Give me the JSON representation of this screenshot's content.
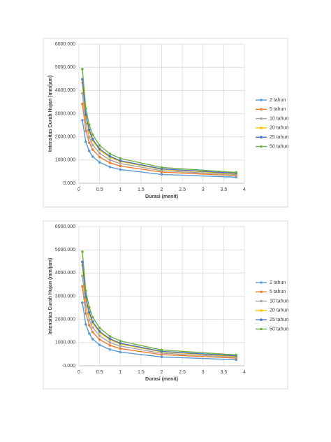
{
  "chart_data": [
    {
      "type": "line",
      "x_label": "Durasi (menit)",
      "y_label": "Intensitas Curah Hujan (mm/jam)",
      "x": [
        0.083,
        0.167,
        0.25,
        0.333,
        0.5,
        0.75,
        1,
        2,
        3.8
      ],
      "series": [
        {
          "name": "2 tahun",
          "color": "#5b9bd5",
          "values": [
            2720,
            1780,
            1390,
            1150,
            900,
            700,
            590,
            380,
            260
          ]
        },
        {
          "name": "5 tahun",
          "color": "#ed7d31",
          "values": [
            3420,
            2250,
            1750,
            1450,
            1130,
            880,
            740,
            480,
            330
          ]
        },
        {
          "name": "10 tahun",
          "color": "#a5a5a5",
          "values": [
            3880,
            2560,
            1990,
            1650,
            1290,
            1000,
            850,
            540,
            370
          ]
        },
        {
          "name": "20 tahun",
          "color": "#ffc000",
          "values": [
            4330,
            2850,
            2220,
            1840,
            1430,
            1120,
            940,
            600,
            410
          ]
        },
        {
          "name": "25 tahun",
          "color": "#4472c4",
          "values": [
            4480,
            2950,
            2300,
            1900,
            1480,
            1160,
            970,
            620,
            430
          ]
        },
        {
          "name": "50 tahun",
          "color": "#70ad47",
          "values": [
            4920,
            3230,
            2520,
            2090,
            1630,
            1270,
            1070,
            680,
            470
          ]
        }
      ],
      "xlim": [
        0,
        4
      ],
      "xticks": [
        0,
        0.5,
        1,
        1.5,
        2,
        2.5,
        3,
        3.5,
        4
      ],
      "ylim": [
        0,
        6000
      ],
      "yticks": [
        {
          "value": 0,
          "label": "0.000"
        },
        {
          "value": 1000,
          "label": "1000.000"
        },
        {
          "value": 2000,
          "label": "2000.000"
        },
        {
          "value": 3000,
          "label": "3000.000"
        },
        {
          "value": 4000,
          "label": "4000.000"
        },
        {
          "value": 5000,
          "label": "5000.000"
        },
        {
          "value": 6000,
          "label": "6000.000"
        }
      ],
      "grid": true,
      "legend": "right"
    },
    {
      "type": "line",
      "x_label": "Durasi (menit)",
      "y_label": "Intensitas Curah Hujan (mm/jam)",
      "x": [
        0.083,
        0.167,
        0.25,
        0.333,
        0.5,
        0.75,
        1,
        2,
        3.8
      ],
      "series": [
        {
          "name": "2 tahun",
          "color": "#5b9bd5",
          "values": [
            2720,
            1780,
            1390,
            1150,
            900,
            700,
            590,
            380,
            260
          ]
        },
        {
          "name": "5 tahun",
          "color": "#ed7d31",
          "values": [
            3420,
            2250,
            1750,
            1450,
            1130,
            880,
            740,
            480,
            330
          ]
        },
        {
          "name": "10 tahun",
          "color": "#a5a5a5",
          "values": [
            3880,
            2560,
            1990,
            1650,
            1290,
            1000,
            850,
            540,
            370
          ]
        },
        {
          "name": "20 tahun",
          "color": "#ffc000",
          "values": [
            4330,
            2850,
            2220,
            1840,
            1430,
            1120,
            940,
            600,
            410
          ]
        },
        {
          "name": "25 tahun",
          "color": "#4472c4",
          "values": [
            4480,
            2950,
            2300,
            1900,
            1480,
            1160,
            970,
            620,
            430
          ]
        },
        {
          "name": "50 tahun",
          "color": "#70ad47",
          "values": [
            4920,
            3230,
            2520,
            2090,
            1630,
            1270,
            1070,
            680,
            470
          ]
        }
      ],
      "xlim": [
        0,
        4
      ],
      "xticks": [
        0,
        0.5,
        1,
        1.5,
        2,
        2.5,
        3,
        3.5,
        4
      ],
      "ylim": [
        0,
        6000
      ],
      "yticks": [
        {
          "value": 0,
          "label": "0.000"
        },
        {
          "value": 1000,
          "label": "1000.000"
        },
        {
          "value": 2000,
          "label": "2000.000"
        },
        {
          "value": 3000,
          "label": "3000.000"
        },
        {
          "value": 4000,
          "label": "4000.000"
        },
        {
          "value": 5000,
          "label": "5000.000"
        },
        {
          "value": 6000,
          "label": "6000.000"
        }
      ],
      "grid": true,
      "legend": "right"
    }
  ]
}
